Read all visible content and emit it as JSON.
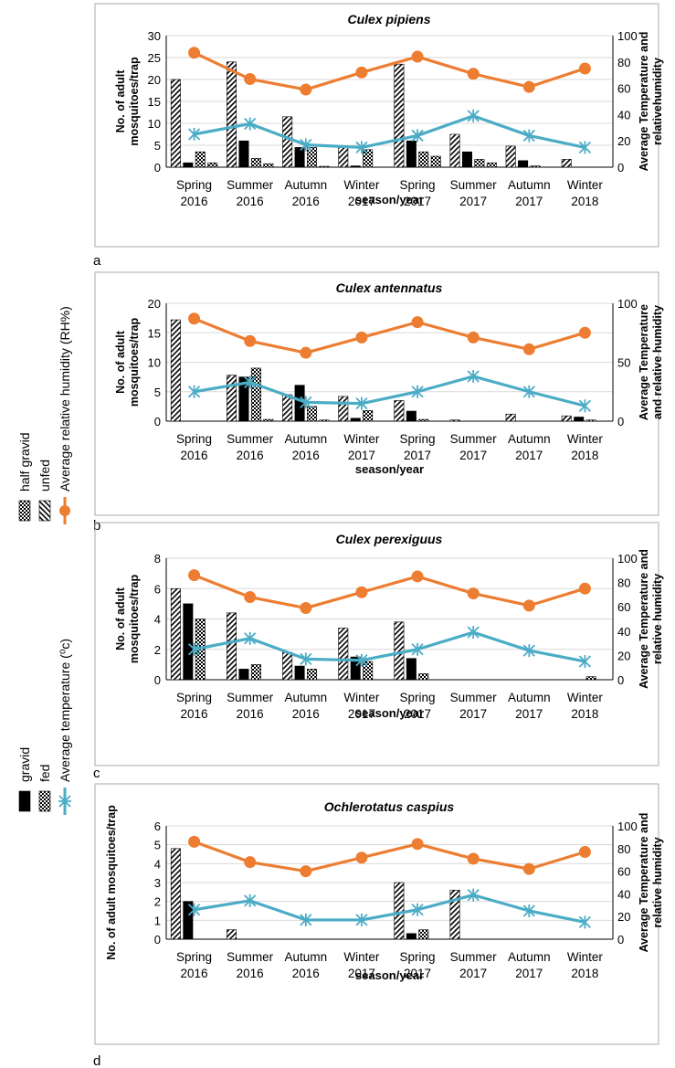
{
  "legend": {
    "group_left": [
      {
        "label": "gravid",
        "pattern": "solid"
      },
      {
        "label": "fed",
        "pattern": "checker"
      },
      {
        "label": "Average temperature  (⁰c)",
        "marker": "star",
        "color": "#4BACC6"
      }
    ],
    "group_right": [
      {
        "label": "half gravid",
        "pattern": "checker"
      },
      {
        "label": "unfed",
        "pattern": "hatch"
      },
      {
        "label": "Average relative humidity (RH%)",
        "marker": "circle",
        "color": "#ED7D31"
      }
    ]
  },
  "colors": {
    "temperature": "#4BACC6",
    "humidity": "#ED7D31",
    "bars": "#000000",
    "frame": "#AAAAAA",
    "grid": "#D9D9D9"
  },
  "chart_data": [
    {
      "panel": "a",
      "type": "bar",
      "title": "Culex pipiens",
      "xlabel": "season/year",
      "ylabel_lines": [
        "No. of adult",
        "mosquitoes/trap"
      ],
      "y2label_lines": [
        "Average Temperature and",
        "relativehumidity"
      ],
      "categories": [
        [
          "Spring",
          "2016"
        ],
        [
          "Summer",
          "2016"
        ],
        [
          "Autumn",
          "2016"
        ],
        [
          "Winter",
          "2017"
        ],
        [
          "Spring",
          "2017"
        ],
        [
          "Summer",
          "2017"
        ],
        [
          "Autumn",
          "2017"
        ],
        [
          "Winter",
          "2018"
        ]
      ],
      "ylim": [
        0,
        30
      ],
      "yticks": [
        0,
        5,
        10,
        15,
        20,
        25,
        30
      ],
      "y2lim": [
        0,
        100
      ],
      "y2ticks": [
        0,
        20,
        40,
        60,
        80,
        100
      ],
      "series": [
        {
          "name": "unfed",
          "values": [
            20,
            24,
            11.5,
            4.8,
            23.5,
            7.5,
            4.8,
            1.8
          ]
        },
        {
          "name": "gravid",
          "values": [
            1,
            6,
            4.5,
            0.3,
            6,
            3.5,
            1.5,
            0
          ]
        },
        {
          "name": "fed",
          "values": [
            3.5,
            2,
            4.5,
            4,
            3.5,
            1.8,
            0.3,
            0
          ]
        },
        {
          "name": "half gravid",
          "values": [
            1,
            0.8,
            0.2,
            0,
            2.5,
            1,
            0,
            0
          ]
        }
      ],
      "lines": [
        {
          "name": "Average relative humidity (RH%)",
          "values": [
            87,
            67,
            59,
            72,
            84,
            71,
            61,
            75
          ]
        },
        {
          "name": "Average temperature  (⁰c)",
          "values": [
            25,
            33,
            17,
            15,
            24,
            39,
            24,
            15
          ]
        }
      ]
    },
    {
      "panel": "b",
      "type": "bar",
      "title": "Culex antennatus",
      "xlabel": "season/year",
      "ylabel_lines": [
        "No. of adult",
        "mosquitoes/trap"
      ],
      "y2label_lines": [
        "Average Temperature",
        "and relative  humidity"
      ],
      "categories": [
        [
          "Spring",
          "2016"
        ],
        [
          "Summer",
          "2016"
        ],
        [
          "Autumn",
          "2016"
        ],
        [
          "Winter",
          "2017"
        ],
        [
          "Spring",
          "2017"
        ],
        [
          "Summer",
          "2017"
        ],
        [
          "Autumn",
          "2017"
        ],
        [
          "Winter",
          "2018"
        ]
      ],
      "ylim": [
        0,
        20
      ],
      "yticks": [
        0,
        5,
        10,
        15,
        20
      ],
      "y2lim": [
        0,
        100
      ],
      "y2ticks": [
        0,
        50,
        100
      ],
      "series": [
        {
          "name": "unfed",
          "values": [
            17.2,
            7.8,
            4.5,
            4.2,
            3.5,
            0.2,
            1.2,
            0.9
          ]
        },
        {
          "name": "gravid",
          "values": [
            0,
            7.5,
            6.1,
            0.5,
            1.7,
            0,
            0,
            0.7
          ]
        },
        {
          "name": "fed",
          "values": [
            0,
            9,
            2.5,
            1.8,
            0.3,
            0,
            0,
            0.2
          ]
        },
        {
          "name": "half gravid",
          "values": [
            0,
            0.3,
            0.2,
            0,
            0,
            0,
            0,
            0
          ]
        }
      ],
      "lines": [
        {
          "name": "Average relative humidity (RH%)",
          "values": [
            87,
            68,
            58,
            71,
            84,
            71,
            61,
            75
          ]
        },
        {
          "name": "Average temperature  (⁰c)",
          "values": [
            25,
            33,
            16,
            15,
            25,
            38,
            25,
            13
          ]
        }
      ]
    },
    {
      "panel": "c",
      "type": "bar",
      "title": "Culex perexiguus",
      "xlabel": "season/year",
      "ylabel_lines": [
        "No. of adult",
        "mosquitoes/trap"
      ],
      "y2label_lines": [
        "Average Temperature and",
        "relative humidity"
      ],
      "categories": [
        [
          "Spring",
          "2016"
        ],
        [
          "Summer",
          "2016"
        ],
        [
          "Autumn",
          "2016"
        ],
        [
          "Winter",
          "2017"
        ],
        [
          "Spring",
          "2017"
        ],
        [
          "Summer",
          "2017"
        ],
        [
          "Autumn",
          "2017"
        ],
        [
          "Winter",
          "2018"
        ]
      ],
      "ylim": [
        0,
        8
      ],
      "yticks": [
        0,
        2,
        4,
        6,
        8
      ],
      "y2lim": [
        0,
        100
      ],
      "y2ticks": [
        0,
        20,
        40,
        60,
        80,
        100
      ],
      "series": [
        {
          "name": "unfed",
          "values": [
            6,
            4.4,
            1.8,
            3.4,
            3.8,
            0,
            0,
            0
          ]
        },
        {
          "name": "gravid",
          "values": [
            5,
            0.7,
            0.9,
            1.5,
            1.4,
            0,
            0,
            0
          ]
        },
        {
          "name": "fed",
          "values": [
            4,
            1,
            0.7,
            1.2,
            0.4,
            0,
            0,
            0.2
          ]
        },
        {
          "name": "half gravid",
          "values": [
            0,
            0,
            0,
            0,
            0,
            0,
            0,
            0
          ]
        }
      ],
      "lines": [
        {
          "name": "Average relative humidity (RH%)",
          "values": [
            86,
            68,
            59,
            72,
            85,
            71,
            61,
            75
          ]
        },
        {
          "name": "Average temperature  (⁰c)",
          "values": [
            25,
            34,
            17,
            16,
            25,
            39,
            24,
            15
          ]
        }
      ]
    },
    {
      "panel": "d",
      "type": "bar",
      "title": "Ochlerotatus caspius",
      "xlabel": "season/year",
      "ylabel_lines": [
        "No. of adult mosquitoes/trap"
      ],
      "y2label_lines": [
        "Average Temperature and",
        "relative humidity"
      ],
      "categories": [
        [
          "Spring",
          "2016"
        ],
        [
          "Summer",
          "2016"
        ],
        [
          "Autumn",
          "2016"
        ],
        [
          "Winter",
          "2017"
        ],
        [
          "Spring",
          "2017"
        ],
        [
          "Summer",
          "2017"
        ],
        [
          "Autumn",
          "2017"
        ],
        [
          "Winter",
          "2018"
        ]
      ],
      "ylim": [
        0,
        6
      ],
      "yticks": [
        0,
        1,
        2,
        3,
        4,
        5,
        6
      ],
      "y2lim": [
        0,
        100
      ],
      "y2ticks": [
        0,
        20,
        40,
        60,
        80,
        100
      ],
      "series": [
        {
          "name": "unfed",
          "values": [
            4.8,
            0.5,
            0,
            0,
            3,
            2.6,
            0,
            0
          ]
        },
        {
          "name": "gravid",
          "values": [
            2,
            0,
            0,
            0,
            0.3,
            0,
            0,
            0
          ]
        },
        {
          "name": "fed",
          "values": [
            0,
            0,
            0,
            0,
            0.5,
            0,
            0,
            0
          ]
        },
        {
          "name": "half gravid",
          "values": [
            0,
            0,
            0,
            0,
            0,
            0,
            0,
            0
          ]
        }
      ],
      "lines": [
        {
          "name": "Average relative humidity (RH%)",
          "values": [
            86,
            68,
            60,
            72,
            84,
            71,
            62,
            77
          ]
        },
        {
          "name": "Average temperature  (⁰c)",
          "values": [
            26,
            34,
            17,
            17,
            26,
            39,
            25,
            15
          ]
        }
      ]
    }
  ]
}
